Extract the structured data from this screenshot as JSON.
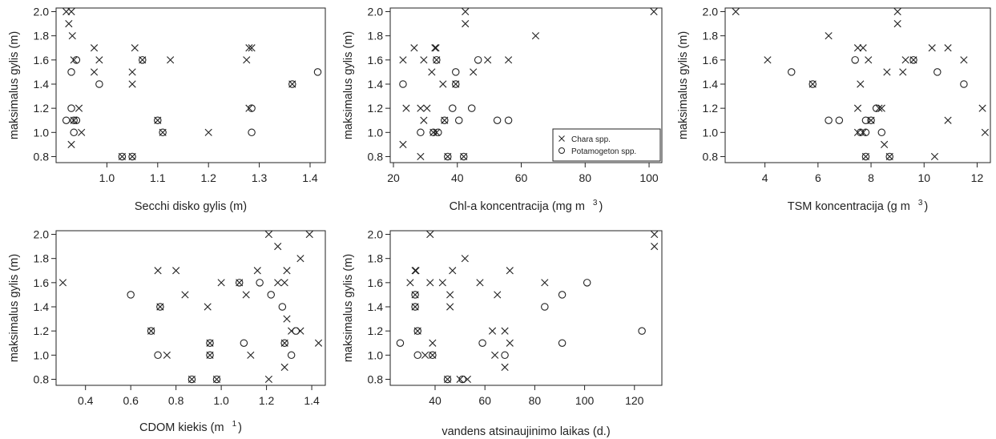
{
  "chart_data": [
    {
      "type": "scatter",
      "xlabel": "Secchi disko gylis (m)",
      "xlabel_sup": "",
      "ylabel": "maksimalus gylis (m)",
      "xlim": [
        0.9,
        1.43
      ],
      "ylim": [
        0.75,
        2.03
      ],
      "xticks": [
        1.0,
        1.1,
        1.2,
        1.3,
        1.4
      ],
      "xtick_labels": [
        "1.0",
        "1.1",
        "1.2",
        "1.3",
        "1.4"
      ],
      "yticks": [
        0.8,
        1.0,
        1.2,
        1.4,
        1.6,
        1.8,
        2.0
      ],
      "ytick_labels": [
        "0.8",
        "1.0",
        "1.2",
        "1.4",
        "1.6",
        "1.8",
        "2.0"
      ],
      "series": [
        {
          "name": "Chara spp.",
          "marker": "x",
          "points": [
            [
              0.92,
              2.0
            ],
            [
              0.925,
              1.9
            ],
            [
              0.93,
              2.0
            ],
            [
              0.932,
              1.8
            ],
            [
              0.935,
              1.6
            ],
            [
              0.935,
              1.1
            ],
            [
              0.93,
              0.9
            ],
            [
              0.945,
              1.2
            ],
            [
              0.95,
              1.0
            ],
            [
              0.975,
              1.7
            ],
            [
              0.975,
              1.5
            ],
            [
              0.985,
              1.6
            ],
            [
              1.03,
              0.8
            ],
            [
              1.055,
              1.7
            ],
            [
              1.05,
              1.5
            ],
            [
              1.05,
              1.4
            ],
            [
              1.05,
              0.8
            ],
            [
              1.07,
              1.6
            ],
            [
              1.1,
              1.1
            ],
            [
              1.11,
              1.0
            ],
            [
              1.125,
              1.6
            ],
            [
              1.2,
              1.0
            ],
            [
              1.275,
              1.6
            ],
            [
              1.28,
              1.7
            ],
            [
              1.285,
              1.7
            ],
            [
              1.28,
              1.2
            ],
            [
              1.365,
              1.4
            ]
          ]
        },
        {
          "name": "Potamogeton spp.",
          "marker": "o",
          "points": [
            [
              0.92,
              1.1
            ],
            [
              0.93,
              1.5
            ],
            [
              0.93,
              1.2
            ],
            [
              0.935,
              1.0
            ],
            [
              0.94,
              1.1
            ],
            [
              0.94,
              1.6
            ],
            [
              0.935,
              1.1
            ],
            [
              0.985,
              1.4
            ],
            [
              1.03,
              0.8
            ],
            [
              1.05,
              0.8
            ],
            [
              1.07,
              1.6
            ],
            [
              1.1,
              1.1
            ],
            [
              1.11,
              1.0
            ],
            [
              1.285,
              1.2
            ],
            [
              1.285,
              1.0
            ],
            [
              1.365,
              1.4
            ],
            [
              1.415,
              1.5
            ]
          ]
        }
      ]
    },
    {
      "type": "scatter",
      "xlabel": "Chl-a koncentracija (mg m",
      "xlabel_sup": "3",
      "ylabel": "maksimalus gylis (m)",
      "xlim": [
        19,
        104
      ],
      "ylim": [
        0.75,
        2.03
      ],
      "xticks": [
        20,
        40,
        60,
        80,
        100
      ],
      "xtick_labels": [
        "20",
        "40",
        "60",
        "80",
        "100"
      ],
      "yticks": [
        0.8,
        1.0,
        1.2,
        1.4,
        1.6,
        1.8,
        2.0
      ],
      "ytick_labels": [
        "0.8",
        "1.0",
        "1.2",
        "1.4",
        "1.6",
        "1.8",
        "2.0"
      ],
      "legend": {
        "position": "bottom-right",
        "entries": [
          {
            "marker": "x",
            "label": "Chara spp."
          },
          {
            "marker": "o",
            "label": "Potamogeton spp."
          }
        ]
      },
      "series": [
        {
          "name": "Chara spp.",
          "marker": "x",
          "points": [
            [
              42.5,
              2.0
            ],
            [
              42.5,
              1.9
            ],
            [
              101.5,
              2.0
            ],
            [
              64.5,
              1.8
            ],
            [
              26.5,
              1.7
            ],
            [
              33,
              1.7
            ],
            [
              33.3,
              1.7
            ],
            [
              23,
              1.6
            ],
            [
              29.5,
              1.6
            ],
            [
              33.5,
              1.6
            ],
            [
              49.5,
              1.6
            ],
            [
              56,
              1.6
            ],
            [
              32,
              1.5
            ],
            [
              45,
              1.5
            ],
            [
              35.5,
              1.4
            ],
            [
              39.5,
              1.4
            ],
            [
              24,
              1.2
            ],
            [
              28.5,
              1.2
            ],
            [
              30.5,
              1.2
            ],
            [
              29.5,
              1.1
            ],
            [
              36,
              1.1
            ],
            [
              32.5,
              1.0
            ],
            [
              33.5,
              1.0
            ],
            [
              23,
              0.9
            ],
            [
              28.5,
              0.8
            ],
            [
              37,
              0.8
            ],
            [
              42,
              0.8
            ]
          ]
        },
        {
          "name": "Potamogeton spp.",
          "marker": "o",
          "points": [
            [
              23,
              1.4
            ],
            [
              33.5,
              1.6
            ],
            [
              39.5,
              1.5
            ],
            [
              39.5,
              1.4
            ],
            [
              46.5,
              1.6
            ],
            [
              38.5,
              1.2
            ],
            [
              44.5,
              1.2
            ],
            [
              36,
              1.1
            ],
            [
              40.5,
              1.1
            ],
            [
              52.5,
              1.1
            ],
            [
              56,
              1.1
            ],
            [
              28.5,
              1.0
            ],
            [
              32.5,
              1.0
            ],
            [
              34,
              1.0
            ],
            [
              37,
              0.8
            ],
            [
              42,
              0.8
            ]
          ]
        }
      ]
    },
    {
      "type": "scatter",
      "xlabel": "TSM koncentracija (g m",
      "xlabel_sup": "3",
      "ylabel": "maksimalus gylis (m)",
      "xlim": [
        2.5,
        12.5
      ],
      "ylim": [
        0.75,
        2.03
      ],
      "xticks": [
        4,
        6,
        8,
        10,
        12
      ],
      "xtick_labels": [
        "4",
        "6",
        "8",
        "10",
        "12"
      ],
      "yticks": [
        0.8,
        1.0,
        1.2,
        1.4,
        1.6,
        1.8,
        2.0
      ],
      "ytick_labels": [
        "0.8",
        "1.0",
        "1.2",
        "1.4",
        "1.6",
        "1.8",
        "2.0"
      ],
      "series": [
        {
          "name": "Chara spp.",
          "marker": "x",
          "points": [
            [
              2.9,
              2.0
            ],
            [
              9.0,
              2.0
            ],
            [
              9.0,
              1.9
            ],
            [
              6.4,
              1.8
            ],
            [
              7.5,
              1.7
            ],
            [
              7.7,
              1.7
            ],
            [
              10.3,
              1.7
            ],
            [
              10.9,
              1.7
            ],
            [
              4.1,
              1.6
            ],
            [
              7.9,
              1.6
            ],
            [
              9.3,
              1.6
            ],
            [
              9.6,
              1.6
            ],
            [
              11.5,
              1.6
            ],
            [
              8.6,
              1.5
            ],
            [
              9.2,
              1.5
            ],
            [
              5.8,
              1.4
            ],
            [
              7.6,
              1.4
            ],
            [
              7.5,
              1.2
            ],
            [
              8.3,
              1.2
            ],
            [
              8.4,
              1.2
            ],
            [
              12.2,
              1.2
            ],
            [
              8.0,
              1.1
            ],
            [
              10.9,
              1.1
            ],
            [
              7.5,
              1.0
            ],
            [
              7.7,
              1.0
            ],
            [
              12.3,
              1.0
            ],
            [
              8.5,
              0.9
            ],
            [
              7.8,
              0.8
            ],
            [
              8.7,
              0.8
            ],
            [
              10.4,
              0.8
            ]
          ]
        },
        {
          "name": "Potamogeton spp.",
          "marker": "o",
          "points": [
            [
              7.4,
              1.6
            ],
            [
              9.6,
              1.6
            ],
            [
              5.0,
              1.5
            ],
            [
              10.5,
              1.5
            ],
            [
              5.8,
              1.4
            ],
            [
              11.5,
              1.4
            ],
            [
              8.2,
              1.2
            ],
            [
              6.4,
              1.1
            ],
            [
              6.8,
              1.1
            ],
            [
              7.8,
              1.1
            ],
            [
              8.0,
              1.1
            ],
            [
              7.6,
              1.0
            ],
            [
              7.8,
              1.0
            ],
            [
              8.4,
              1.0
            ],
            [
              7.8,
              0.8
            ],
            [
              8.7,
              0.8
            ]
          ]
        }
      ]
    },
    {
      "type": "scatter",
      "xlabel": "CDOM kiekis (m",
      "xlabel_sup": "1",
      "ylabel": "maksimalus gylis (m)",
      "xlim": [
        0.27,
        1.46
      ],
      "ylim": [
        0.75,
        2.03
      ],
      "xticks": [
        0.4,
        0.6,
        0.8,
        1.0,
        1.2,
        1.4
      ],
      "xtick_labels": [
        "0.4",
        "0.6",
        "0.8",
        "1.0",
        "1.2",
        "1.4"
      ],
      "yticks": [
        0.8,
        1.0,
        1.2,
        1.4,
        1.6,
        1.8,
        2.0
      ],
      "ytick_labels": [
        "0.8",
        "1.0",
        "1.2",
        "1.4",
        "1.6",
        "1.8",
        "2.0"
      ],
      "series": [
        {
          "name": "Chara spp.",
          "marker": "x",
          "points": [
            [
              0.3,
              1.6
            ],
            [
              0.72,
              1.7
            ],
            [
              0.8,
              1.7
            ],
            [
              1.16,
              1.7
            ],
            [
              1.29,
              1.7
            ],
            [
              1.21,
              2.0
            ],
            [
              1.39,
              2.0
            ],
            [
              1.25,
              1.9
            ],
            [
              1.35,
              1.8
            ],
            [
              1.0,
              1.6
            ],
            [
              1.08,
              1.6
            ],
            [
              1.25,
              1.6
            ],
            [
              1.28,
              1.6
            ],
            [
              0.84,
              1.5
            ],
            [
              1.11,
              1.5
            ],
            [
              0.73,
              1.4
            ],
            [
              0.94,
              1.4
            ],
            [
              1.29,
              1.3
            ],
            [
              0.69,
              1.2
            ],
            [
              1.31,
              1.2
            ],
            [
              1.35,
              1.2
            ],
            [
              0.95,
              1.1
            ],
            [
              1.28,
              1.1
            ],
            [
              1.43,
              1.1
            ],
            [
              0.76,
              1.0
            ],
            [
              0.95,
              1.0
            ],
            [
              1.13,
              1.0
            ],
            [
              1.28,
              0.9
            ],
            [
              0.87,
              0.8
            ],
            [
              0.98,
              0.8
            ],
            [
              1.21,
              0.8
            ]
          ]
        },
        {
          "name": "Potamogeton spp.",
          "marker": "o",
          "points": [
            [
              0.6,
              1.5
            ],
            [
              1.08,
              1.6
            ],
            [
              1.17,
              1.6
            ],
            [
              1.22,
              1.5
            ],
            [
              0.73,
              1.4
            ],
            [
              1.27,
              1.4
            ],
            [
              0.69,
              1.2
            ],
            [
              1.33,
              1.2
            ],
            [
              0.95,
              1.1
            ],
            [
              1.1,
              1.1
            ],
            [
              1.28,
              1.1
            ],
            [
              0.72,
              1.0
            ],
            [
              0.95,
              1.0
            ],
            [
              1.31,
              1.0
            ],
            [
              0.87,
              0.8
            ],
            [
              0.98,
              0.8
            ]
          ]
        }
      ]
    },
    {
      "type": "scatter",
      "xlabel": "vandens atsinaujinimo laikas (d.)",
      "xlabel_sup": "",
      "ylabel": "maksimalus gylis (m)",
      "xlim": [
        22,
        131
      ],
      "ylim": [
        0.75,
        2.03
      ],
      "xticks": [
        40,
        60,
        80,
        100,
        120
      ],
      "xtick_labels": [
        "40",
        "60",
        "80",
        "100",
        "120"
      ],
      "yticks": [
        0.8,
        1.0,
        1.2,
        1.4,
        1.6,
        1.8,
        2.0
      ],
      "ytick_labels": [
        "0.8",
        "1.0",
        "1.2",
        "1.4",
        "1.6",
        "1.8",
        "2.0"
      ],
      "series": [
        {
          "name": "Chara spp.",
          "marker": "x",
          "points": [
            [
              38,
              2.0
            ],
            [
              128,
              2.0
            ],
            [
              128,
              1.9
            ],
            [
              52,
              1.8
            ],
            [
              32,
              1.7
            ],
            [
              32.3,
              1.7
            ],
            [
              47,
              1.7
            ],
            [
              70,
              1.7
            ],
            [
              30,
              1.6
            ],
            [
              38,
              1.6
            ],
            [
              43,
              1.6
            ],
            [
              58,
              1.6
            ],
            [
              84,
              1.6
            ],
            [
              32,
              1.5
            ],
            [
              46,
              1.5
            ],
            [
              65,
              1.5
            ],
            [
              32,
              1.4
            ],
            [
              46,
              1.4
            ],
            [
              33,
              1.2
            ],
            [
              63,
              1.2
            ],
            [
              68,
              1.2
            ],
            [
              39,
              1.1
            ],
            [
              70,
              1.1
            ],
            [
              36,
              1.0
            ],
            [
              39,
              1.0
            ],
            [
              64,
              1.0
            ],
            [
              68,
              0.9
            ],
            [
              45,
              0.8
            ],
            [
              50,
              0.8
            ],
            [
              53,
              0.8
            ]
          ]
        },
        {
          "name": "Potamogeton spp.",
          "marker": "o",
          "points": [
            [
              32,
              1.5
            ],
            [
              32,
              1.4
            ],
            [
              84,
              1.4
            ],
            [
              101,
              1.6
            ],
            [
              91,
              1.5
            ],
            [
              33,
              1.2
            ],
            [
              123,
              1.2
            ],
            [
              26,
              1.1
            ],
            [
              59,
              1.1
            ],
            [
              91,
              1.1
            ],
            [
              33,
              1.0
            ],
            [
              39,
              1.0
            ],
            [
              68,
              1.0
            ],
            [
              45,
              0.8
            ],
            [
              51,
              0.8
            ]
          ]
        }
      ]
    }
  ]
}
